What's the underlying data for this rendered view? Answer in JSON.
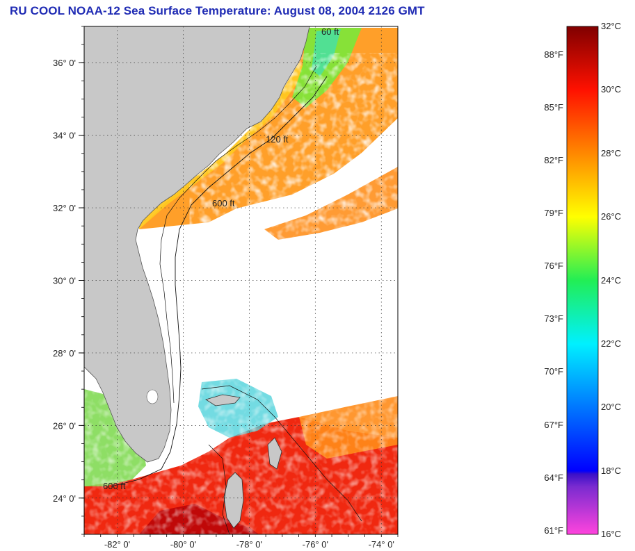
{
  "title": "RU COOL  NOAA-12  Sea Surface Temperature:  August 08, 2004 2126 GMT",
  "colors": {
    "land": "#c8c8c8",
    "no_data": "#ffffff",
    "title": "#1f2bb4"
  },
  "map": {
    "lon_range": [
      -83,
      -73.5
    ],
    "lat_range": [
      23,
      37
    ],
    "lat_labels": [
      {
        "value": 36,
        "label": "36° 0'"
      },
      {
        "value": 34,
        "label": "34° 0'"
      },
      {
        "value": 32,
        "label": "32° 0'"
      },
      {
        "value": 30,
        "label": "30° 0'"
      },
      {
        "value": 28,
        "label": "28° 0'"
      },
      {
        "value": 26,
        "label": "26° 0'"
      },
      {
        "value": 24,
        "label": "24° 0'"
      }
    ],
    "lon_labels": [
      {
        "value": -82,
        "label": "-82° 0'"
      },
      {
        "value": -80,
        "label": "-80° 0'"
      },
      {
        "value": -78,
        "label": "-78° 0'"
      },
      {
        "value": -76,
        "label": "-76° 0'"
      },
      {
        "value": -74,
        "label": "-74° 0'"
      }
    ],
    "contour_labels": [
      "600 ft",
      "120 ft",
      "60 ft"
    ]
  },
  "colorbar": {
    "fahrenheit_labels": [
      "88°F",
      "85°F",
      "82°F",
      "79°F",
      "76°F",
      "73°F",
      "70°F",
      "67°F",
      "64°F",
      "61°F"
    ],
    "celsius_labels": [
      "32°C",
      "30°C",
      "28°C",
      "26°C",
      "24°C",
      "22°C",
      "20°C",
      "18°C",
      "16°C"
    ],
    "f_values": [
      88,
      85,
      82,
      79,
      76,
      73,
      70,
      67,
      64,
      61
    ],
    "c_values": [
      32,
      30,
      28,
      26,
      24,
      22,
      20,
      18,
      16
    ],
    "min_c": 16,
    "max_c": 32,
    "stops": [
      {
        "c": 16,
        "color": "#ff44dd"
      },
      {
        "c": 17.5,
        "color": "#7a2bd0"
      },
      {
        "c": 17.9,
        "color": "#3a10c8"
      },
      {
        "c": 18,
        "color": "#0000ff"
      },
      {
        "c": 20,
        "color": "#0077ff"
      },
      {
        "c": 22,
        "color": "#00f0ff"
      },
      {
        "c": 24,
        "color": "#22ee55"
      },
      {
        "c": 26,
        "color": "#ffff00"
      },
      {
        "c": 28,
        "color": "#ff8800"
      },
      {
        "c": 30,
        "color": "#ff1100"
      },
      {
        "c": 32,
        "color": "#800000"
      }
    ]
  }
}
